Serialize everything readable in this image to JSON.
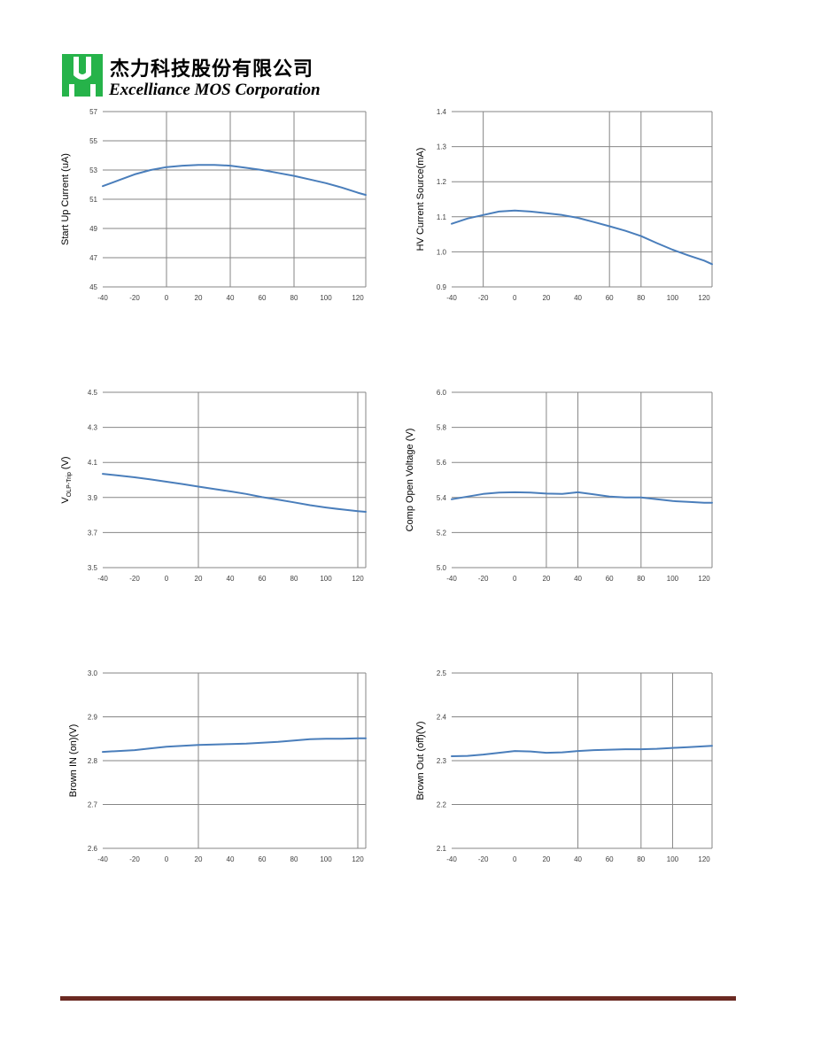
{
  "header": {
    "company_cn": "杰力科技股份有限公司",
    "company_en": "Excelliance MOS Corporation",
    "logo_icon": "em-logo-icon",
    "logo_color": "#26b34a"
  },
  "colors": {
    "series": "#4a7ebb",
    "grid": "#868686"
  },
  "chart_data": [
    {
      "type": "line",
      "ylabel": "Start Up Current (uA)",
      "xlim": [
        -40,
        120
      ],
      "ylim": [
        45,
        57
      ],
      "xticks": [
        "-40",
        "-20",
        "0",
        "20",
        "40",
        "60",
        "80",
        "100",
        "120"
      ],
      "yticks": [
        "45",
        "47",
        "49",
        "51",
        "53",
        "55",
        "57"
      ],
      "x": [
        -40,
        -30,
        -20,
        -10,
        0,
        10,
        20,
        30,
        40,
        50,
        60,
        70,
        80,
        90,
        100,
        110,
        120,
        125
      ],
      "values": [
        51.9,
        52.3,
        52.7,
        53.0,
        53.2,
        53.3,
        53.35,
        53.35,
        53.3,
        53.15,
        53.0,
        52.8,
        52.6,
        52.35,
        52.1,
        51.8,
        51.45,
        51.3
      ]
    },
    {
      "type": "line",
      "ylabel": "HV Current Source(mA)",
      "xlim": [
        -40,
        120
      ],
      "ylim": [
        0.9,
        1.4
      ],
      "xticks": [
        "-40",
        "-20",
        "0",
        "20",
        "40",
        "60",
        "80",
        "100",
        "120"
      ],
      "yticks": [
        "0.9",
        "1.0",
        "1.1",
        "1.2",
        "1.3",
        "1.4"
      ],
      "x": [
        -40,
        -30,
        -20,
        -10,
        0,
        10,
        20,
        30,
        40,
        50,
        60,
        70,
        80,
        90,
        100,
        110,
        120,
        125
      ],
      "values": [
        1.08,
        1.095,
        1.105,
        1.115,
        1.118,
        1.115,
        1.11,
        1.105,
        1.097,
        1.085,
        1.073,
        1.06,
        1.045,
        1.025,
        1.006,
        0.99,
        0.975,
        0.965
      ]
    },
    {
      "type": "line",
      "ylabel": "V",
      "ylabel_sub": "OLP-Trip",
      "ylabel_suffix": " (V)",
      "xlim": [
        -40,
        120
      ],
      "ylim": [
        3.5,
        4.5
      ],
      "xticks": [
        "-40",
        "-20",
        "0",
        "20",
        "40",
        "60",
        "80",
        "100",
        "120"
      ],
      "yticks": [
        "3.5",
        "3.7",
        "3.9",
        "4.1",
        "4.3",
        "4.5"
      ],
      "x": [
        -40,
        -30,
        -20,
        -10,
        0,
        10,
        20,
        30,
        40,
        50,
        60,
        70,
        80,
        90,
        100,
        110,
        120,
        125
      ],
      "values": [
        4.035,
        4.025,
        4.015,
        4.003,
        3.99,
        3.977,
        3.962,
        3.948,
        3.935,
        3.92,
        3.902,
        3.888,
        3.872,
        3.856,
        3.843,
        3.832,
        3.822,
        3.818
      ]
    },
    {
      "type": "line",
      "ylabel": "Comp Open Voltage (V)",
      "xlim": [
        -40,
        120
      ],
      "ylim": [
        5.0,
        6.0
      ],
      "xticks": [
        "-40",
        "-20",
        "0",
        "20",
        "40",
        "60",
        "80",
        "100",
        "120"
      ],
      "yticks": [
        "5.0",
        "5.2",
        "5.4",
        "5.6",
        "5.8",
        "6.0"
      ],
      "x": [
        -40,
        -30,
        -20,
        -10,
        0,
        10,
        20,
        30,
        40,
        50,
        60,
        70,
        80,
        90,
        100,
        110,
        120,
        125
      ],
      "values": [
        5.39,
        5.405,
        5.42,
        5.428,
        5.43,
        5.428,
        5.422,
        5.42,
        5.43,
        5.418,
        5.405,
        5.4,
        5.4,
        5.39,
        5.38,
        5.375,
        5.37,
        5.37
      ]
    },
    {
      "type": "line",
      "ylabel": "Brown IN (on)(V)",
      "xlim": [
        -40,
        120
      ],
      "ylim": [
        2.6,
        3.0
      ],
      "xticks": [
        "-40",
        "-20",
        "0",
        "20",
        "40",
        "60",
        "80",
        "100",
        "120"
      ],
      "yticks": [
        "2.6",
        "2.7",
        "2.8",
        "2.9",
        "3.0"
      ],
      "x": [
        -40,
        -30,
        -20,
        -10,
        0,
        10,
        20,
        30,
        40,
        50,
        60,
        70,
        80,
        90,
        100,
        110,
        120,
        125
      ],
      "values": [
        2.82,
        2.822,
        2.824,
        2.828,
        2.832,
        2.834,
        2.836,
        2.837,
        2.838,
        2.839,
        2.841,
        2.843,
        2.846,
        2.849,
        2.85,
        2.85,
        2.851,
        2.851
      ]
    },
    {
      "type": "line",
      "ylabel": "Brown Out (off)(V)",
      "xlim": [
        -40,
        120
      ],
      "ylim": [
        2.1,
        2.5
      ],
      "xticks": [
        "-40",
        "-20",
        "0",
        "20",
        "40",
        "60",
        "80",
        "100",
        "120"
      ],
      "yticks": [
        "2.1",
        "2.2",
        "2.3",
        "2.4",
        "2.5"
      ],
      "x": [
        -40,
        -30,
        -20,
        -10,
        0,
        10,
        20,
        30,
        40,
        50,
        60,
        70,
        80,
        90,
        100,
        110,
        120,
        125
      ],
      "values": [
        2.31,
        2.311,
        2.314,
        2.318,
        2.322,
        2.321,
        2.318,
        2.319,
        2.322,
        2.324,
        2.325,
        2.326,
        2.326,
        2.327,
        2.329,
        2.331,
        2.333,
        2.334
      ]
    }
  ]
}
